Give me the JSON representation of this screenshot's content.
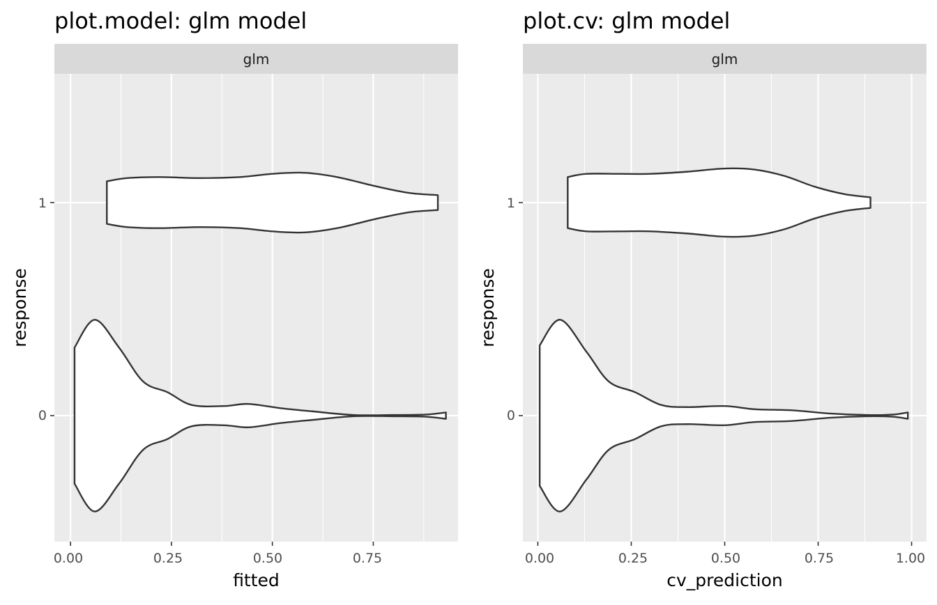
{
  "panels": [
    {
      "title": "plot.model: glm model",
      "strip": "glm",
      "xlabel": "fitted",
      "ylabel": "response",
      "x_ticks": [
        "0.00",
        "0.25",
        "0.50",
        "0.75"
      ],
      "y_ticks": [
        "0",
        "1"
      ]
    },
    {
      "title": "plot.cv: glm model",
      "strip": "glm",
      "xlabel": "cv_prediction",
      "ylabel": "response",
      "x_ticks": [
        "0.00",
        "0.25",
        "0.50",
        "0.75",
        "1.00"
      ],
      "y_ticks": [
        "0",
        "1"
      ]
    }
  ],
  "colors": {
    "panel_background": "#ebebeb",
    "strip_background": "#d9d9d9",
    "grid": "#ffffff",
    "violin_fill": "#ffffff",
    "violin_outline": "#333333"
  },
  "chart_data": [
    {
      "type": "violin",
      "title": "plot.model: glm model",
      "facet": "glm",
      "xlabel": "fitted",
      "ylabel": "response",
      "orientation": "horizontal",
      "xlim": [
        -0.04,
        0.96
      ],
      "x_major_ticks": [
        0,
        0.25,
        0.5,
        0.75
      ],
      "categories": [
        "0",
        "1"
      ],
      "grid": true,
      "series": [
        {
          "category": "0",
          "range": [
            0.01,
            0.93
          ],
          "density_profile": [
            [
              0.01,
              0.32
            ],
            [
              0.06,
              0.45
            ],
            [
              0.12,
              0.32
            ],
            [
              0.18,
              0.16
            ],
            [
              0.24,
              0.11
            ],
            [
              0.3,
              0.05
            ],
            [
              0.38,
              0.045
            ],
            [
              0.44,
              0.055
            ],
            [
              0.52,
              0.035
            ],
            [
              0.6,
              0.02
            ],
            [
              0.7,
              0.003
            ],
            [
              0.8,
              0.003
            ],
            [
              0.88,
              0.005
            ],
            [
              0.93,
              0.015
            ]
          ]
        },
        {
          "category": "1",
          "range": [
            0.09,
            0.91
          ],
          "density_profile": [
            [
              0.09,
              0.1
            ],
            [
              0.14,
              0.115
            ],
            [
              0.22,
              0.12
            ],
            [
              0.32,
              0.115
            ],
            [
              0.42,
              0.12
            ],
            [
              0.5,
              0.135
            ],
            [
              0.58,
              0.14
            ],
            [
              0.66,
              0.12
            ],
            [
              0.76,
              0.075
            ],
            [
              0.84,
              0.045
            ],
            [
              0.91,
              0.035
            ]
          ]
        }
      ]
    },
    {
      "type": "violin",
      "title": "plot.cv: glm model",
      "facet": "glm",
      "xlabel": "cv_prediction",
      "ylabel": "response",
      "orientation": "horizontal",
      "xlim": [
        -0.04,
        1.04
      ],
      "x_major_ticks": [
        0,
        0.25,
        0.5,
        0.75,
        1
      ],
      "categories": [
        "0",
        "1"
      ],
      "grid": true,
      "series": [
        {
          "category": "0",
          "range": [
            0.005,
            0.99
          ],
          "density_profile": [
            [
              0.005,
              0.33
            ],
            [
              0.06,
              0.45
            ],
            [
              0.13,
              0.3
            ],
            [
              0.19,
              0.16
            ],
            [
              0.26,
              0.11
            ],
            [
              0.33,
              0.05
            ],
            [
              0.4,
              0.04
            ],
            [
              0.5,
              0.045
            ],
            [
              0.58,
              0.03
            ],
            [
              0.68,
              0.025
            ],
            [
              0.78,
              0.01
            ],
            [
              0.88,
              0.003
            ],
            [
              0.95,
              0.005
            ],
            [
              0.99,
              0.015
            ]
          ]
        },
        {
          "category": "1",
          "range": [
            0.08,
            0.89
          ],
          "density_profile": [
            [
              0.08,
              0.12
            ],
            [
              0.13,
              0.135
            ],
            [
              0.22,
              0.135
            ],
            [
              0.3,
              0.135
            ],
            [
              0.4,
              0.145
            ],
            [
              0.5,
              0.16
            ],
            [
              0.58,
              0.155
            ],
            [
              0.66,
              0.125
            ],
            [
              0.74,
              0.075
            ],
            [
              0.82,
              0.04
            ],
            [
              0.89,
              0.025
            ]
          ]
        }
      ]
    }
  ]
}
